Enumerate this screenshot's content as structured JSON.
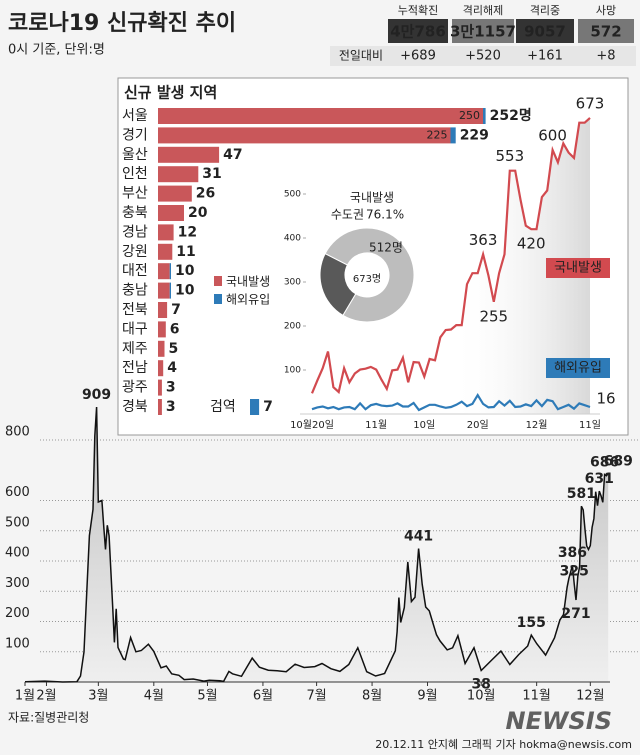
{
  "header": {
    "title": "코로나19 신규확진 추이",
    "subtitle": "0시 기준, 단위:명"
  },
  "stats": {
    "headers": [
      "누적확진",
      "격리해제",
      "격리중",
      "사망"
    ],
    "values": [
      "4만786",
      "3만1157",
      "9057",
      "572"
    ],
    "change_label": "전일대비",
    "changes": [
      "+689",
      "+520",
      "+161",
      "+8"
    ]
  },
  "chart_data": [
    {
      "type": "hbar",
      "title": "신규 발생 지역",
      "categories": [
        "서울",
        "경기",
        "울산",
        "인천",
        "부산",
        "충북",
        "경남",
        "강원",
        "대전",
        "충남",
        "전북",
        "대구",
        "제주",
        "전남",
        "광주",
        "경북",
        "검역"
      ],
      "series": [
        {
          "name": "국내발생",
          "color": "#c9575a",
          "values": [
            250,
            225,
            47,
            31,
            26,
            20,
            12,
            11,
            9,
            9,
            7,
            6,
            5,
            4,
            3,
            3,
            0
          ],
          "value_labels": [
            "250",
            "225",
            null,
            null,
            null,
            null,
            null,
            null,
            null,
            null,
            null,
            null,
            null,
            null,
            null,
            null,
            null
          ]
        },
        {
          "name": "해외유입",
          "color": "#2e7bb8",
          "values": [
            2,
            4,
            0,
            0,
            0,
            0,
            0,
            0,
            1,
            1,
            0,
            0,
            0,
            0,
            0,
            0,
            7
          ]
        }
      ],
      "total_labels": [
        "252명",
        "229",
        "47",
        "31",
        "26",
        "20",
        "12",
        "11",
        "10",
        "10",
        "7",
        "6",
        "5",
        "4",
        "3",
        "3",
        "7"
      ]
    },
    {
      "type": "line",
      "categories": [
        "10월20일",
        null,
        null,
        null,
        null,
        null,
        null,
        null,
        null,
        null,
        null,
        null,
        "11월",
        null,
        null,
        null,
        null,
        null,
        null,
        null,
        null,
        "10일",
        null,
        null,
        null,
        null,
        null,
        null,
        null,
        null,
        null,
        "20일",
        null,
        null,
        null,
        null,
        null,
        null,
        null,
        null,
        null,
        null,
        "12월",
        null,
        null,
        null,
        null,
        null,
        null,
        null,
        null,
        null,
        "11일"
      ],
      "series": [
        {
          "name": "국내발생",
          "color": "#d24a4f",
          "values": [
            47,
            76,
            104,
            142,
            61,
            50,
            104,
            72,
            92,
            101,
            103,
            107,
            101,
            78,
            57,
            99,
            101,
            128,
            72,
            118,
            117,
            85,
            125,
            122,
            174,
            191,
            192,
            202,
            202,
            295,
            320,
            320,
            363,
            315,
            255,
            320,
            363,
            553,
            553,
            487,
            428,
            420,
            420,
            493,
            508,
            600,
            572,
            615,
            594,
            582,
            662,
            662,
            673
          ],
          "value_labels": [
            null,
            null,
            null,
            null,
            null,
            null,
            null,
            null,
            null,
            null,
            null,
            null,
            null,
            null,
            null,
            null,
            null,
            null,
            null,
            null,
            null,
            null,
            null,
            null,
            null,
            null,
            null,
            null,
            null,
            null,
            null,
            null,
            "363",
            null,
            "255",
            null,
            null,
            "553",
            null,
            null,
            null,
            "420",
            null,
            null,
            null,
            "600",
            null,
            null,
            null,
            null,
            null,
            null,
            "673"
          ]
        },
        {
          "name": "해외유입",
          "color": "#2e7bb8",
          "values": [
            11,
            15,
            17,
            13,
            16,
            11,
            15,
            16,
            11,
            24,
            11,
            20,
            23,
            19,
            18,
            19,
            24,
            17,
            17,
            25,
            9,
            15,
            21,
            21,
            17,
            14,
            16,
            21,
            28,
            18,
            23,
            43,
            23,
            15,
            16,
            29,
            19,
            30,
            16,
            17,
            22,
            18,
            31,
            18,
            32,
            29,
            11,
            16,
            21,
            12,
            24,
            20,
            16
          ],
          "value_labels": [
            null,
            null,
            null,
            null,
            null,
            null,
            null,
            null,
            null,
            null,
            null,
            null,
            null,
            null,
            null,
            null,
            null,
            null,
            null,
            null,
            null,
            null,
            null,
            null,
            null,
            null,
            null,
            null,
            null,
            null,
            null,
            null,
            null,
            null,
            null,
            null,
            null,
            null,
            null,
            null,
            null,
            null,
            null,
            null,
            null,
            null,
            null,
            null,
            null,
            null,
            null,
            null,
            "16"
          ]
        }
      ],
      "ylim": [
        0,
        700
      ],
      "yticks": [
        100,
        200,
        300,
        400,
        500
      ]
    },
    {
      "type": "pie",
      "title": "국내발생",
      "categories": [
        "수도권",
        null
      ],
      "values": [
        512,
        161
      ],
      "value_labels": [
        "512명",
        null
      ],
      "colors": [
        "#bdbdbd",
        "#595959"
      ],
      "percent_label": "76.1%",
      "center_label": "673명"
    },
    {
      "type": "area-line",
      "color": "#111",
      "x": [
        19,
        30,
        40,
        48,
        50,
        52,
        53,
        55,
        57,
        58,
        59,
        60,
        62,
        63,
        64,
        65,
        66,
        68,
        69,
        70,
        71,
        74,
        75,
        78,
        81,
        84,
        88,
        91,
        95,
        98,
        101,
        105,
        108,
        113,
        119,
        122,
        128,
        130,
        133,
        135,
        140,
        146,
        150,
        155,
        160,
        165,
        170,
        175,
        181,
        185,
        190,
        195,
        200,
        205,
        210,
        215,
        220,
        226,
        227,
        228,
        229,
        231,
        233,
        235,
        237,
        239,
        241,
        243,
        245,
        247,
        249,
        251,
        253,
        255,
        258,
        261,
        265,
        270,
        274,
        280,
        285,
        290,
        295,
        300,
        302,
        305,
        310,
        315,
        318,
        320,
        322,
        323,
        324,
        325,
        326,
        327,
        328,
        329,
        330,
        331,
        332,
        333,
        334,
        335,
        336,
        337,
        338,
        339,
        340,
        341,
        342,
        343,
        344,
        345
      ],
      "values": [
        1,
        3,
        0,
        1,
        20,
        100,
        229,
        484,
        571,
        813,
        909,
        595,
        600,
        516,
        438,
        518,
        483,
        248,
        131,
        242,
        114,
        76,
        74,
        147,
        100,
        104,
        125,
        101,
        47,
        53,
        27,
        22,
        8,
        10,
        3,
        6,
        4,
        2,
        35,
        27,
        19,
        79,
        49,
        39,
        37,
        34,
        59,
        48,
        51,
        61,
        44,
        35,
        58,
        113,
        34,
        20,
        28,
        103,
        166,
        279,
        197,
        246,
        397,
        266,
        280,
        441,
        323,
        248,
        235,
        195,
        156,
        136,
        121,
        106,
        113,
        153,
        61,
        113,
        38,
        73,
        102,
        58,
        91,
        119,
        155,
        127,
        89,
        146,
        205,
        223,
        313,
        343,
        363,
        386,
        325,
        271,
        349,
        382,
        581,
        569,
        504,
        450,
        438,
        451,
        511,
        540,
        629,
        583,
        631,
        615,
        594,
        686,
        682,
        689
      ],
      "value_labels": [
        null,
        null,
        null,
        null,
        null,
        null,
        null,
        null,
        null,
        null,
        "909",
        null,
        null,
        null,
        null,
        null,
        null,
        null,
        null,
        null,
        null,
        null,
        null,
        null,
        null,
        null,
        null,
        null,
        null,
        null,
        null,
        null,
        null,
        null,
        null,
        null,
        null,
        null,
        null,
        null,
        null,
        null,
        null,
        null,
        null,
        null,
        null,
        null,
        null,
        null,
        null,
        null,
        null,
        null,
        null,
        null,
        null,
        null,
        null,
        null,
        null,
        null,
        null,
        null,
        null,
        "441",
        null,
        null,
        null,
        null,
        null,
        null,
        null,
        null,
        null,
        null,
        null,
        null,
        "38",
        null,
        null,
        null,
        null,
        null,
        "155",
        null,
        null,
        null,
        null,
        null,
        null,
        null,
        null,
        "386",
        "325",
        "271",
        null,
        null,
        "581",
        null,
        null,
        null,
        null,
        null,
        null,
        null,
        null,
        null,
        "631",
        null,
        null,
        "686",
        null,
        "689"
      ],
      "xlim": [
        19,
        346
      ],
      "ylim": [
        0,
        930
      ],
      "xticks": [
        {
          "value": 19,
          "label": "1월"
        },
        {
          "value": 31,
          "label": "2월"
        },
        {
          "value": 60,
          "label": "3월"
        },
        {
          "value": 91,
          "label": "4월"
        },
        {
          "value": 121,
          "label": "5월"
        },
        {
          "value": 152,
          "label": "6월"
        },
        {
          "value": 182,
          "label": "7월"
        },
        {
          "value": 213,
          "label": "8월"
        },
        {
          "value": 244,
          "label": "9월"
        },
        {
          "value": 274,
          "label": "10월"
        },
        {
          "value": 305,
          "label": "11월"
        },
        {
          "value": 335,
          "label": "12월"
        }
      ],
      "yticks": [
        100,
        200,
        300,
        400,
        500,
        600,
        800
      ],
      "grid": true
    }
  ],
  "footer": {
    "source": "자료:질병관리청",
    "credit": "20.12.11 안지혜 그래픽 기자 hokma@newsis.com",
    "watermark": "NEWSIS"
  }
}
